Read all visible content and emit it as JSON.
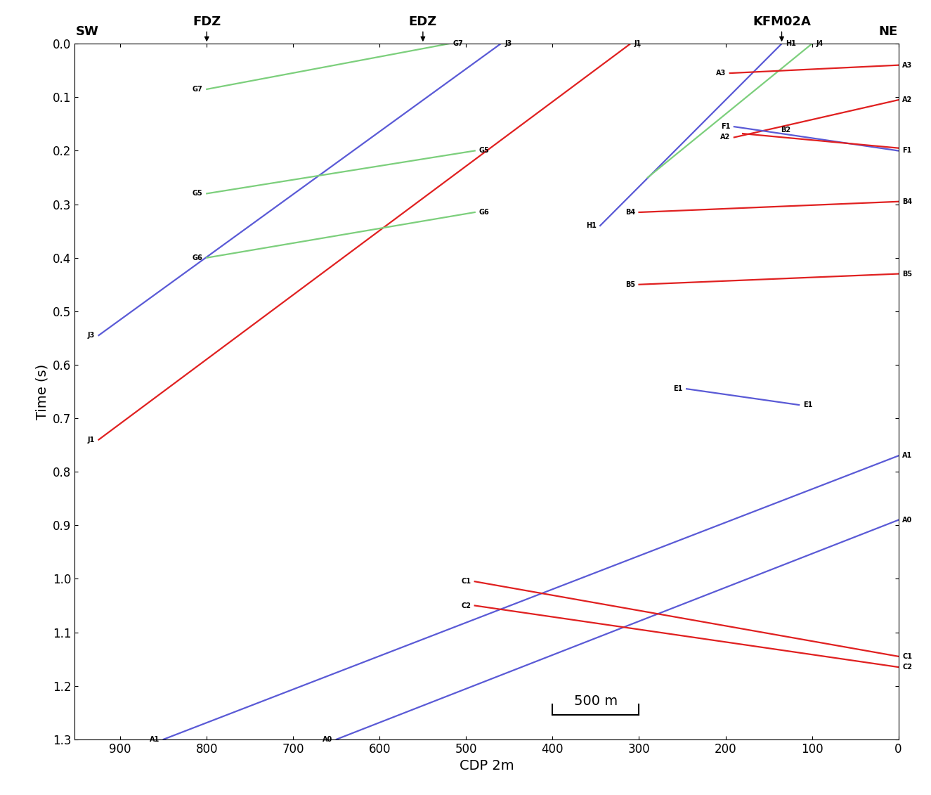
{
  "chart_data": {
    "type": "line",
    "x_label": "CDP 2m",
    "y_label": "Time (s)",
    "xlim": [
      953,
      0
    ],
    "ylim": [
      1.3,
      0.0
    ],
    "xticks": [
      900,
      800,
      700,
      600,
      500,
      400,
      300,
      200,
      100,
      0
    ],
    "yticks": [
      0.0,
      0.1,
      0.2,
      0.3,
      0.4,
      0.5,
      0.6,
      0.7,
      0.8,
      0.9,
      1.0,
      1.1,
      1.2,
      1.3
    ],
    "top_labels": [
      {
        "text": "SW",
        "x": 938,
        "arrow": false
      },
      {
        "text": "FDZ",
        "x": 800,
        "arrow": true
      },
      {
        "text": "EDZ",
        "x": 550,
        "arrow": true
      },
      {
        "text": "KFM02A",
        "x": 135,
        "arrow": true
      },
      {
        "text": "NE",
        "x": 12,
        "arrow": false
      }
    ],
    "scale_bar": {
      "text": "500 m",
      "x": [
        400,
        300
      ]
    },
    "series": [
      {
        "name": "G7",
        "color": "#7ccf7c",
        "x": [
          800,
          520
        ],
        "values": [
          0.085,
          0.0
        ],
        "label_x": [
          800,
          520
        ]
      },
      {
        "name": "J3",
        "color": "#5a5ad6",
        "x": [
          925,
          460
        ],
        "values": [
          0.545,
          0.0
        ],
        "label_x": [
          925,
          460
        ]
      },
      {
        "name": "J1",
        "color": "#e02020",
        "x": [
          925,
          310
        ],
        "values": [
          0.74,
          0.0
        ],
        "label_x": [
          925,
          310
        ]
      },
      {
        "name": "G5",
        "color": "#7ccf7c",
        "x": [
          800,
          490
        ],
        "values": [
          0.28,
          0.2
        ],
        "label_x": [
          800,
          490
        ]
      },
      {
        "name": "G6",
        "color": "#7ccf7c",
        "x": [
          800,
          490
        ],
        "values": [
          0.4,
          0.315
        ],
        "label_x": [
          800,
          490
        ]
      },
      {
        "name": "H1",
        "color": "#5a5ad6",
        "x": [
          345,
          135
        ],
        "values": [
          0.34,
          0.0
        ],
        "label_x": [
          345,
          135
        ]
      },
      {
        "name": "J4",
        "color": "#7ccf7c",
        "x": [
          290,
          100
        ],
        "values": [
          0.25,
          0.0
        ],
        "label_x": [
          100
        ]
      },
      {
        "name": "A3",
        "color": "#e02020",
        "x": [
          195,
          0
        ],
        "values": [
          0.055,
          0.04
        ],
        "label_x": [
          195,
          0
        ]
      },
      {
        "name": "A2",
        "color": "#e02020",
        "x": [
          190,
          0
        ],
        "values": [
          0.175,
          0.105
        ],
        "label_x": [
          190,
          0
        ]
      },
      {
        "name": "F1",
        "color": "#5a5ad6",
        "x": [
          190,
          0
        ],
        "values": [
          0.155,
          0.2
        ],
        "label_x": [
          190,
          0
        ]
      },
      {
        "name": "B2",
        "color": "#e02020",
        "x": [
          180,
          0
        ],
        "values": [
          0.168,
          0.195
        ],
        "label_x": [
          130
        ]
      },
      {
        "name": "B4",
        "color": "#e02020",
        "x": [
          300,
          0
        ],
        "values": [
          0.315,
          0.295
        ],
        "label_x": [
          300,
          0
        ]
      },
      {
        "name": "B5",
        "color": "#e02020",
        "x": [
          300,
          0
        ],
        "values": [
          0.45,
          0.43
        ],
        "label_x": [
          300,
          0
        ]
      },
      {
        "name": "E1",
        "color": "#5a5ad6",
        "x": [
          245,
          115
        ],
        "values": [
          0.645,
          0.675
        ],
        "label_x": [
          245,
          115
        ]
      },
      {
        "name": "A1",
        "color": "#5a5ad6",
        "x": [
          850,
          0
        ],
        "values": [
          1.3,
          0.77
        ],
        "label_x": [
          850,
          0
        ]
      },
      {
        "name": "A0",
        "color": "#5a5ad6",
        "x": [
          650,
          0
        ],
        "values": [
          1.3,
          0.89
        ],
        "label_x": [
          650,
          0
        ]
      },
      {
        "name": "C1",
        "color": "#e02020",
        "x": [
          490,
          0
        ],
        "values": [
          1.005,
          1.145
        ],
        "label_x": [
          490,
          0
        ]
      },
      {
        "name": "C2",
        "color": "#e02020",
        "x": [
          490,
          0
        ],
        "values": [
          1.05,
          1.165
        ],
        "label_x": [
          490,
          0
        ]
      }
    ]
  }
}
